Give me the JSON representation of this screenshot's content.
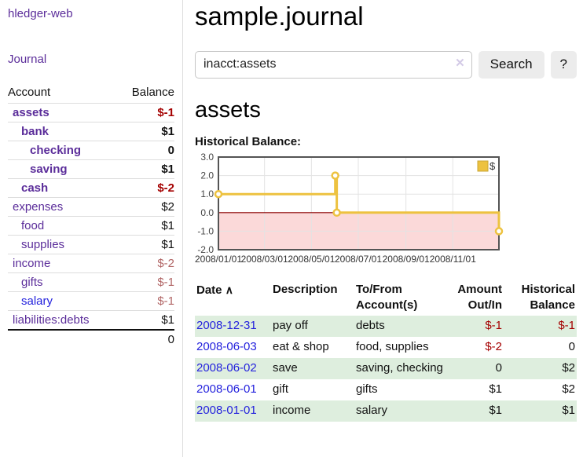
{
  "app": {
    "title": "hledger-web"
  },
  "sidebar": {
    "journal_link": "Journal",
    "headers": {
      "account": "Account",
      "balance": "Balance"
    },
    "accounts": [
      {
        "name": "assets",
        "depth": 1,
        "bold": true,
        "balance": "$-1",
        "negd": true
      },
      {
        "name": "bank",
        "depth": 2,
        "bold": true,
        "balance": "$1"
      },
      {
        "name": "checking",
        "depth": 3,
        "bold": true,
        "balance": "0"
      },
      {
        "name": "saving",
        "depth": 3,
        "bold": true,
        "balance": "$1"
      },
      {
        "name": "cash",
        "depth": 2,
        "bold": true,
        "balance": "$-2",
        "negd": true
      },
      {
        "name": "expenses",
        "depth": 1,
        "balance": "$2"
      },
      {
        "name": "food",
        "depth": 2,
        "balance": "$1"
      },
      {
        "name": "supplies",
        "depth": 2,
        "balance": "$1"
      },
      {
        "name": "income",
        "depth": 1,
        "balance": "$-2",
        "negs": true
      },
      {
        "name": "gifts",
        "depth": 2,
        "balance": "$-1",
        "negs": true
      },
      {
        "name": "salary",
        "depth": 2,
        "balance": "$-1",
        "negs": true,
        "blue": true
      },
      {
        "name": "liabilities:debts",
        "depth": 1,
        "balance": "$1"
      }
    ],
    "total": "0"
  },
  "main": {
    "title": "sample.journal",
    "search": {
      "value": "inacct:assets",
      "clear_icon": "✕",
      "button": "Search",
      "help": "?"
    },
    "section_title": "assets",
    "chart_heading": "Historical Balance:"
  },
  "chart_data": {
    "type": "line",
    "title": "Historical Balance:",
    "legend": [
      {
        "label": "$",
        "color": "#edc240"
      }
    ],
    "legend_position": "top-right",
    "grid": true,
    "ylim": [
      -2.0,
      3.0
    ],
    "yticks": [
      3.0,
      2.0,
      1.0,
      0.0,
      -1.0,
      -2.0
    ],
    "xlim_days": [
      0,
      365
    ],
    "xticks": [
      {
        "label": "2008/01/01",
        "day": 0
      },
      {
        "label": "2008/03/01",
        "day": 60
      },
      {
        "label": "2008/05/01",
        "day": 121
      },
      {
        "label": "2008/07/01",
        "day": 182
      },
      {
        "label": "2008/09/01",
        "day": 244
      },
      {
        "label": "2008/11/01",
        "day": 305
      }
    ],
    "series": [
      {
        "name": "$",
        "color": "#edc240",
        "step": true,
        "points": [
          {
            "date": "2008-01-01",
            "day": 0,
            "value": 1
          },
          {
            "date": "2008-06-01",
            "day": 152,
            "value": 2
          },
          {
            "date": "2008-06-03",
            "day": 154,
            "value": 0
          },
          {
            "date": "2008-12-31",
            "day": 365,
            "value": -1
          }
        ]
      }
    ],
    "negative_region_color": "#fbd9d9",
    "zero_line_color": "#8b0000",
    "border_color": "#545454",
    "grid_color": "#e3e3e3"
  },
  "register": {
    "headers": {
      "date": "Date",
      "sort_icon": "∧",
      "description": "Description",
      "accounts": "To/From Account(s)",
      "amount": "Amount Out/In",
      "balance": "Historical Balance"
    },
    "rows": [
      {
        "date": "2008-12-31",
        "description": "pay off",
        "accounts": "debts",
        "amount": "$-1",
        "amount_neg": true,
        "balance": "$-1",
        "balance_neg": true
      },
      {
        "date": "2008-06-03",
        "description": "eat & shop",
        "accounts": "food, supplies",
        "amount": "$-2",
        "amount_neg": true,
        "balance": "0"
      },
      {
        "date": "2008-06-02",
        "description": "save",
        "accounts": "saving, checking",
        "amount": "0",
        "balance": "$2"
      },
      {
        "date": "2008-06-01",
        "description": "gift",
        "accounts": "gifts",
        "amount": "$1",
        "balance": "$2"
      },
      {
        "date": "2008-01-01",
        "description": "income",
        "accounts": "salary",
        "amount": "$1",
        "balance": "$1"
      }
    ]
  },
  "colors": {
    "link_purple": "#5b2d9a",
    "link_blue": "#2422dd",
    "negative_dark": "#a40000",
    "negative_soft": "#b16565",
    "stripe_green": "#deeede",
    "chart_line_gold": "#edc240"
  }
}
